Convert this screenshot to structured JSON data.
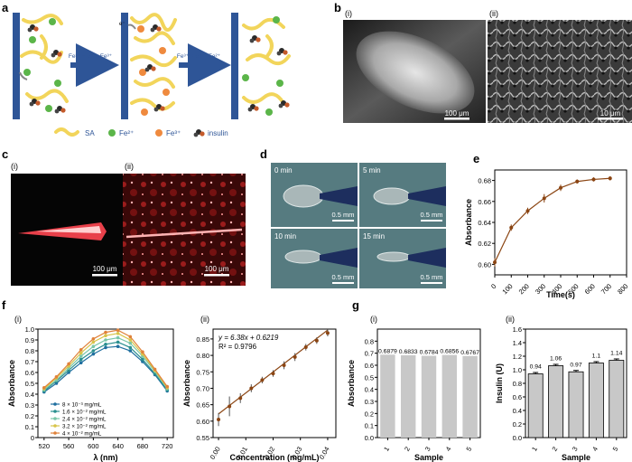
{
  "panels": {
    "a": {
      "label": "a",
      "arrow1": "Fe²⁺ − e⁻ = Fe³⁺",
      "arrow2": "Fe³⁺ + e⁻ = Fe²⁺",
      "electron": "e⁻",
      "legend": {
        "sa": "SA",
        "fe2": "Fe²⁺",
        "fe3": "Fe³⁺",
        "insulin": "insulin"
      },
      "colors": {
        "electrode": "#2e5597",
        "sa": "#f2d55b",
        "fe2": "#5bb549",
        "fe3": "#ef8a3e",
        "insulin": "#2a2a2a",
        "arrow": "#2e5597"
      }
    },
    "b": {
      "label": "b",
      "sub1": "(i)",
      "sub2": "(ii)",
      "scale1": "100 μm",
      "scale2": "10 μm"
    },
    "c": {
      "label": "c",
      "sub1": "(i)",
      "sub2": "(ii)",
      "scale1": "100 μm",
      "scale2": "100 μm"
    },
    "d": {
      "label": "d",
      "t0": "0 min",
      "t5": "5 min",
      "t10": "10 min",
      "t15": "15 min",
      "scale": "0.5 mm"
    },
    "e": {
      "label": "e"
    },
    "f": {
      "label": "f",
      "sub1": "(i)",
      "sub2": "(ii)"
    },
    "g": {
      "label": "g",
      "sub1": "(i)",
      "sub2": "(ii)"
    }
  },
  "chart_data": [
    {
      "id": "e",
      "type": "line",
      "title": "",
      "xlabel": "Time(s)",
      "ylabel": "Absorbance",
      "xlim": [
        0,
        800
      ],
      "ylim": [
        0.59,
        0.69
      ],
      "xticks": [
        "0",
        "100",
        "200",
        "300",
        "400",
        "500",
        "600",
        "700",
        "800"
      ],
      "yticks": [
        "0.60",
        "0.62",
        "0.64",
        "0.66",
        "0.68"
      ],
      "color": "#8b4513",
      "x": [
        0,
        100,
        200,
        300,
        400,
        500,
        600,
        700
      ],
      "y": [
        0.602,
        0.635,
        0.651,
        0.663,
        0.673,
        0.679,
        0.681,
        0.682
      ],
      "err": [
        0.004,
        0.003,
        0.003,
        0.004,
        0.003,
        0.002,
        0.002,
        0.002
      ]
    },
    {
      "id": "f1",
      "type": "line",
      "xlabel": "λ (nm)",
      "ylabel": "Absorbance",
      "xlim": [
        510,
        730
      ],
      "ylim": [
        0,
        1.0
      ],
      "xticks": [
        "520",
        "560",
        "600",
        "640",
        "680",
        "720"
      ],
      "yticks": [
        "0",
        "0.1",
        "0.2",
        "0.3",
        "0.4",
        "0.5",
        "0.6",
        "0.7",
        "0.8",
        "0.9",
        "1.0"
      ],
      "x": [
        520,
        540,
        560,
        580,
        600,
        620,
        640,
        660,
        680,
        700,
        720
      ],
      "series": [
        {
          "name": "8 × 10⁻³ mg/mL",
          "color": "#1f6f9f",
          "values": [
            0.42,
            0.5,
            0.6,
            0.69,
            0.77,
            0.83,
            0.84,
            0.8,
            0.7,
            0.58,
            0.43
          ]
        },
        {
          "name": "1.6 × 10⁻² mg/mL",
          "color": "#2a8f8f",
          "values": [
            0.43,
            0.52,
            0.62,
            0.72,
            0.8,
            0.86,
            0.88,
            0.83,
            0.72,
            0.59,
            0.44
          ]
        },
        {
          "name": "2.4 × 10⁻² mg/mL",
          "color": "#7ac6a8",
          "values": [
            0.44,
            0.53,
            0.64,
            0.75,
            0.84,
            0.9,
            0.92,
            0.87,
            0.75,
            0.61,
            0.45
          ]
        },
        {
          "name": "3.2 × 10⁻² mg/mL",
          "color": "#d8c44a",
          "values": [
            0.45,
            0.55,
            0.66,
            0.78,
            0.88,
            0.94,
            0.96,
            0.9,
            0.77,
            0.62,
            0.46
          ]
        },
        {
          "name": "4 × 10⁻² mg/mL",
          "color": "#e0823a",
          "values": [
            0.46,
            0.56,
            0.68,
            0.81,
            0.91,
            0.97,
            0.99,
            0.93,
            0.79,
            0.63,
            0.47
          ]
        }
      ]
    },
    {
      "id": "f2",
      "type": "scatter",
      "xlabel": "Concentration (mg/mL)",
      "ylabel": "Absorbance",
      "xlim": [
        -0.002,
        0.043
      ],
      "ylim": [
        0.55,
        0.88
      ],
      "xticks": [
        "0.00",
        "0.01",
        "0.02",
        "0.03",
        "0.04"
      ],
      "yticks": [
        "0.55",
        "0.60",
        "0.65",
        "0.70",
        "0.75",
        "0.80",
        "0.85"
      ],
      "equation": "y = 6.38x + 0.6219",
      "r2": "R² = 0.9796",
      "color": "#8b4513",
      "fit": {
        "slope": 6.38,
        "intercept": 0.6219
      },
      "x": [
        0.0,
        0.004,
        0.008,
        0.012,
        0.016,
        0.02,
        0.024,
        0.028,
        0.032,
        0.036,
        0.04
      ],
      "y": [
        0.605,
        0.645,
        0.67,
        0.7,
        0.725,
        0.745,
        0.77,
        0.795,
        0.825,
        0.845,
        0.868
      ],
      "err": [
        0.02,
        0.03,
        0.015,
        0.012,
        0.01,
        0.01,
        0.012,
        0.012,
        0.01,
        0.01,
        0.01
      ]
    },
    {
      "id": "g1",
      "type": "bar",
      "xlabel": "Sample",
      "ylabel": "Absorbance",
      "ylim": [
        0,
        0.9
      ],
      "yticks": [
        "0.0",
        "0.1",
        "0.2",
        "0.3",
        "0.4",
        "0.5",
        "0.6",
        "0.7",
        "0.8"
      ],
      "categories": [
        "1",
        "2",
        "3",
        "4",
        "5"
      ],
      "values": [
        0.6879,
        0.6833,
        0.6784,
        0.6856,
        0.6767
      ],
      "labels": [
        "0.6879",
        "0.6833",
        "0.6784",
        "0.6856",
        "0.6767"
      ],
      "color": "#c8c8c8"
    },
    {
      "id": "g2",
      "type": "bar",
      "xlabel": "Sample",
      "ylabel": "Insulin (U)",
      "ylim": [
        0,
        1.6
      ],
      "yticks": [
        "0.0",
        "0.2",
        "0.4",
        "0.6",
        "0.8",
        "1.0",
        "1.2",
        "1.4",
        "1.6"
      ],
      "categories": [
        "1",
        "2",
        "3",
        "4",
        "5"
      ],
      "values": [
        0.94,
        1.06,
        0.97,
        1.1,
        1.14
      ],
      "labels": [
        "0.94",
        "1.06",
        "0.97",
        "1.1",
        "1.14"
      ],
      "err": [
        0.02,
        0.02,
        0.02,
        0.02,
        0.02
      ],
      "color": "#c8c8c8"
    }
  ]
}
